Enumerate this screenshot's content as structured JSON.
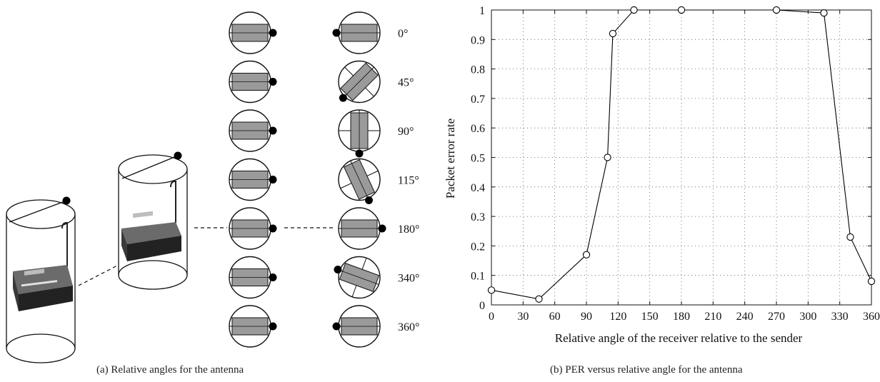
{
  "panel_a": {
    "caption": "(a)  Relative angles for the antenna",
    "angle_labels": [
      "0°",
      "45°",
      "90°",
      "115°",
      "180°",
      "340°",
      "360°"
    ],
    "receiver_rotations": [
      0,
      45,
      90,
      115,
      180,
      340,
      360
    ]
  },
  "panel_b": {
    "caption": "(b)  PER versus relative angle for the antenna"
  },
  "chart_data": {
    "type": "line",
    "xlabel": "Relative angle of the receiver relative to the sender",
    "ylabel": "Packet error rate",
    "xlim": [
      0,
      360
    ],
    "ylim": [
      0,
      1
    ],
    "x_ticks": [
      0,
      30,
      60,
      90,
      120,
      150,
      180,
      210,
      240,
      270,
      300,
      330,
      360
    ],
    "y_ticks": [
      0,
      0.1,
      0.2,
      0.3,
      0.4,
      0.5,
      0.6,
      0.7,
      0.8,
      0.9,
      1
    ],
    "grid": true,
    "series": [
      {
        "x": [
          0,
          45,
          90,
          110,
          115,
          135,
          180,
          270,
          315,
          340,
          360
        ],
        "y": [
          0.05,
          0.02,
          0.17,
          0.5,
          0.92,
          1.0,
          1.0,
          1.0,
          0.99,
          0.23,
          0.08
        ],
        "marker": "circle",
        "color": "#000000"
      }
    ]
  }
}
